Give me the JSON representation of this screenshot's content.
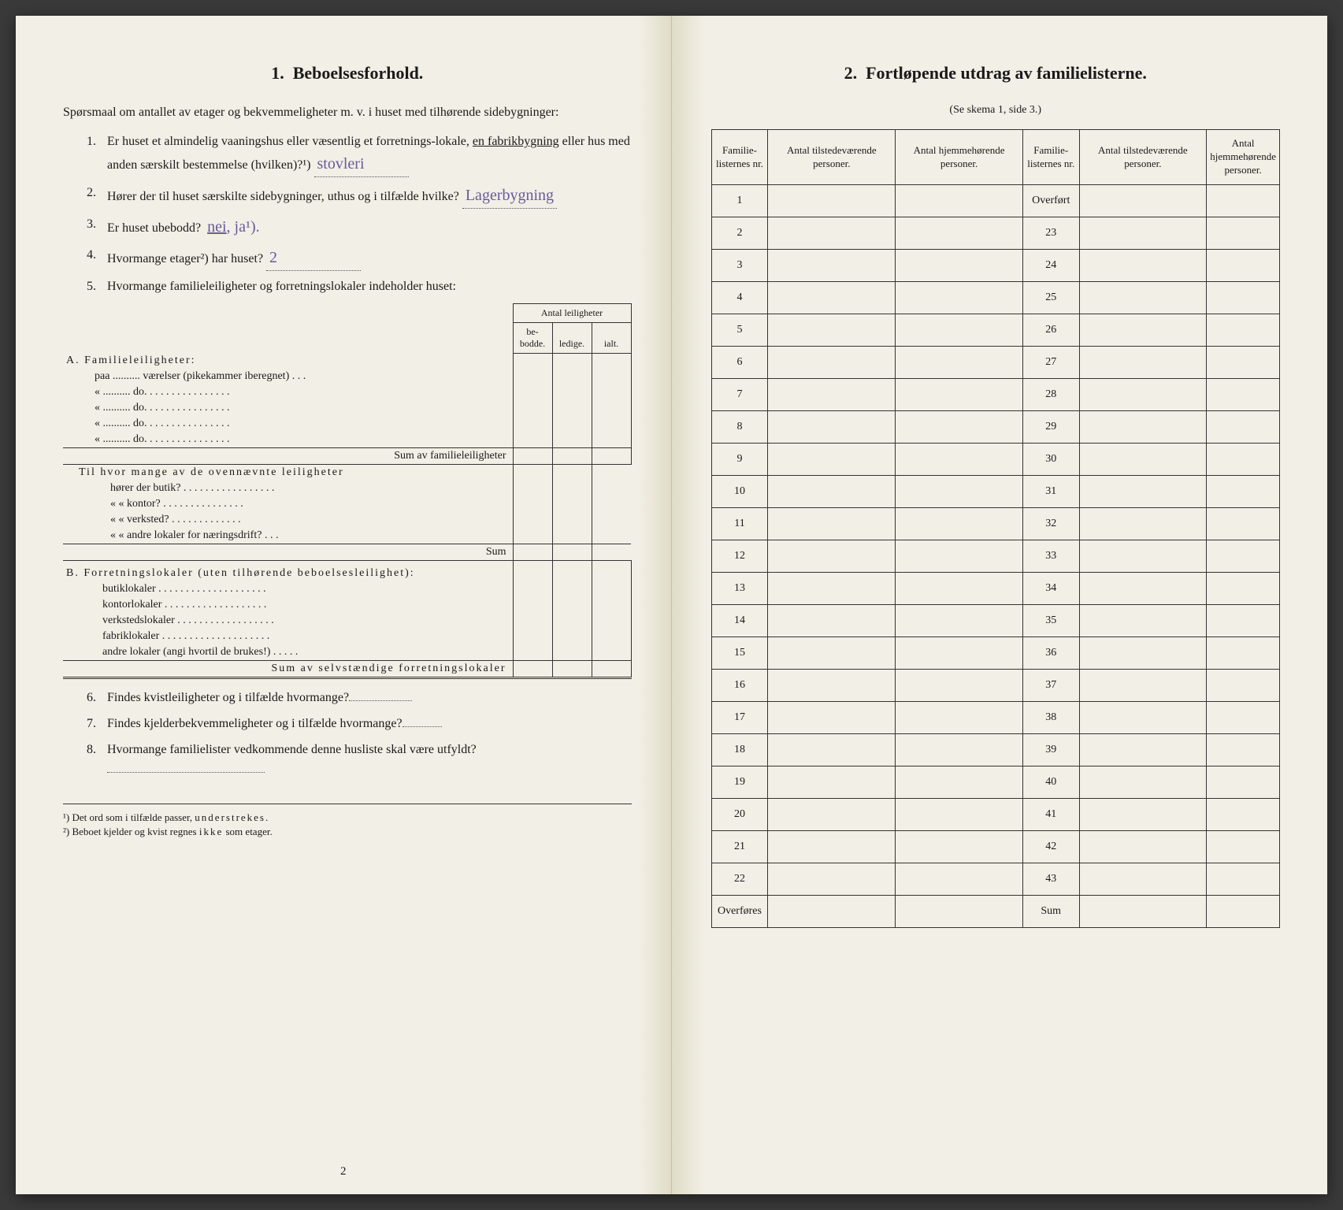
{
  "left": {
    "title_num": "1.",
    "title": "Beboelsesforhold.",
    "intro": "Spørsmaal om antallet av etager og bekvemmeligheter m. v. i huset med tilhørende sidebygninger:",
    "q1_num": "1.",
    "q1": "Er huset et almindelig vaaningshus eller væsentlig et forretningslokale, en fabrikbygning eller hus med anden særskilt bestemmelse (hvilken)?¹)",
    "q1_ans": "stovleri",
    "q2_num": "2.",
    "q2": "Hører der til huset særskilte sidebygninger, uthus og i tilfælde hvilke?",
    "q2_ans": "Lagerbygning",
    "q3_num": "3.",
    "q3": "Er huset ubebodd?",
    "q3_opts": "nei, ja¹).",
    "q4_num": "4.",
    "q4": "Hvormange etager²) har huset?",
    "q4_ans": "2",
    "q5_num": "5.",
    "q5": "Hvormange familieleiligheter og forretningslokaler indeholder huset:",
    "antal_header": "Antal leiligheter",
    "col_bebodde": "be-bodde.",
    "col_ledige": "ledige.",
    "col_ialt": "ialt.",
    "a_label": "A. Familieleiligheter:",
    "a_r1": "paa .......... værelser (pikekammer iberegnet) . . .",
    "a_do": "do.",
    "a_sum": "Sum av familieleiligheter",
    "a_til": "Til hvor mange av de ovennævnte leiligheter",
    "a_butik": "hører der butik? . . . . . . . . . . . . . . . . .",
    "a_kontor": "«    « kontor? . . . . . . . . . . . . . . .",
    "a_verksted": "«    « verksted? . . . . . . . . . . . . .",
    "a_andre": "«    « andre lokaler for næringsdrift? . . .",
    "a_sum2": "Sum",
    "b_label": "B. Forretningslokaler (uten tilhørende beboelsesleilighet):",
    "b_butik": "butiklokaler . . . . . . . . . . . . . . . . . . . .",
    "b_kontor": "kontorlokaler . . . . . . . . . . . . . . . . . . .",
    "b_verk": "verkstedslokaler . . . . . . . . . . . . . . . . . .",
    "b_fabrik": "fabriklokaler . . . . . . . . . . . . . . . . . . . .",
    "b_andre": "andre lokaler (angi hvortil de brukes!) . . . . .",
    "b_sum": "Sum av selvstændige forretningslokaler",
    "q6_num": "6.",
    "q6": "Findes kvistleiligheter og i tilfælde hvormange?",
    "q7_num": "7.",
    "q7": "Findes kjelderbekvemmeligheter og i tilfælde hvormange?",
    "q8_num": "8.",
    "q8": "Hvormange familielister vedkommende denne husliste skal være utfyldt?",
    "fn1": "¹) Det ord som i tilfælde passer, understrekes.",
    "fn2": "²) Beboet kjelder og kvist regnes ikke som etager.",
    "page_num": "2"
  },
  "right": {
    "title_num": "2.",
    "title": "Fortløpende utdrag av familielisterne.",
    "subtitle": "(Se skema 1, side 3.)",
    "h1": "Familie-listernes nr.",
    "h2": "Antal tilstedeværende personer.",
    "h3": "Antal hjemmehørende personer.",
    "overfort": "Overført",
    "overfores": "Overføres",
    "sum": "Sum",
    "rows_left": [
      "1",
      "2",
      "3",
      "4",
      "5",
      "6",
      "7",
      "8",
      "9",
      "10",
      "11",
      "12",
      "13",
      "14",
      "15",
      "16",
      "17",
      "18",
      "19",
      "20",
      "21",
      "22"
    ],
    "rows_right": [
      "23",
      "24",
      "25",
      "26",
      "27",
      "28",
      "29",
      "30",
      "31",
      "32",
      "33",
      "34",
      "35",
      "36",
      "37",
      "38",
      "39",
      "40",
      "41",
      "42",
      "43"
    ]
  }
}
